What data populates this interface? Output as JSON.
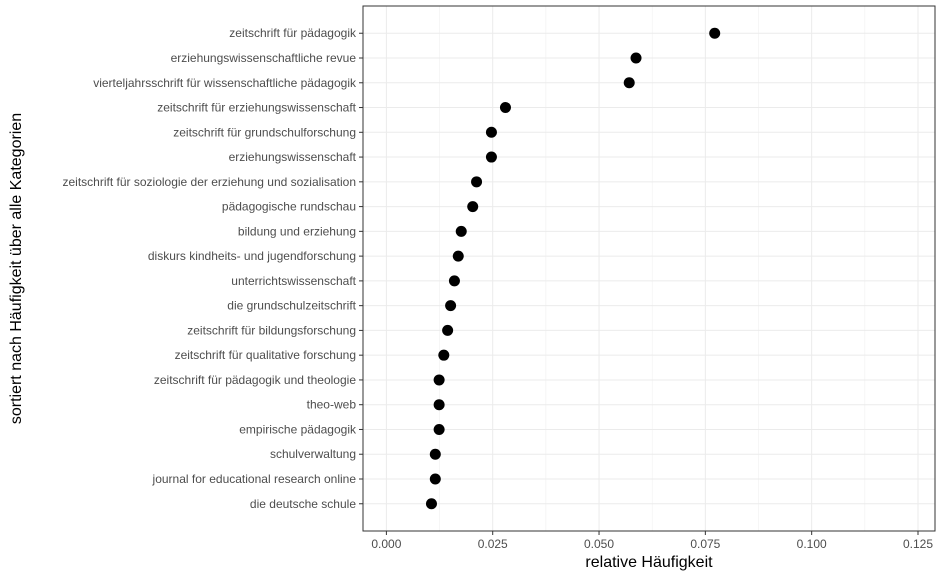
{
  "chart_data": {
    "type": "scatter",
    "title": "",
    "xlabel": "relative Häufigkeit",
    "ylabel": "sortiert nach Häufigkeit über alle Kategorien",
    "xlim": [
      -0.0055,
      0.129
    ],
    "xticks": [
      0.0,
      0.025,
      0.05,
      0.075,
      0.1,
      0.125
    ],
    "xtick_labels": [
      "0.000",
      "0.025",
      "0.050",
      "0.075",
      "0.100",
      "0.125"
    ],
    "grid": true,
    "legend": "none",
    "point_color": "#000000",
    "categories": [
      "zeitschrift für pädagogik",
      "erziehungswissenschaftliche revue",
      "vierteljahrsschrift für wissenschaftliche pädagogik",
      "zeitschrift für erziehungswissenschaft",
      "zeitschrift für grundschulforschung",
      "erziehungswissenschaft",
      "zeitschrift für soziologie der erziehung und sozialisation",
      "pädagogische rundschau",
      "bildung und erziehung",
      "diskurs kindheits- und jugendforschung",
      "unterrichtswissenschaft",
      "die grundschulzeitschrift",
      "zeitschrift für bildungsforschung",
      "zeitschrift für qualitative forschung",
      "zeitschrift für pädagogik und theologie",
      "theo-web",
      "empirische pädagogik",
      "schulverwaltung",
      "journal for educational research online",
      "die deutsche schule"
    ],
    "values": [
      0.0772,
      0.0587,
      0.0571,
      0.028,
      0.0247,
      0.0247,
      0.0212,
      0.0203,
      0.0176,
      0.0169,
      0.016,
      0.0151,
      0.0144,
      0.0135,
      0.0124,
      0.0124,
      0.0124,
      0.0115,
      0.0115,
      0.0106
    ]
  }
}
